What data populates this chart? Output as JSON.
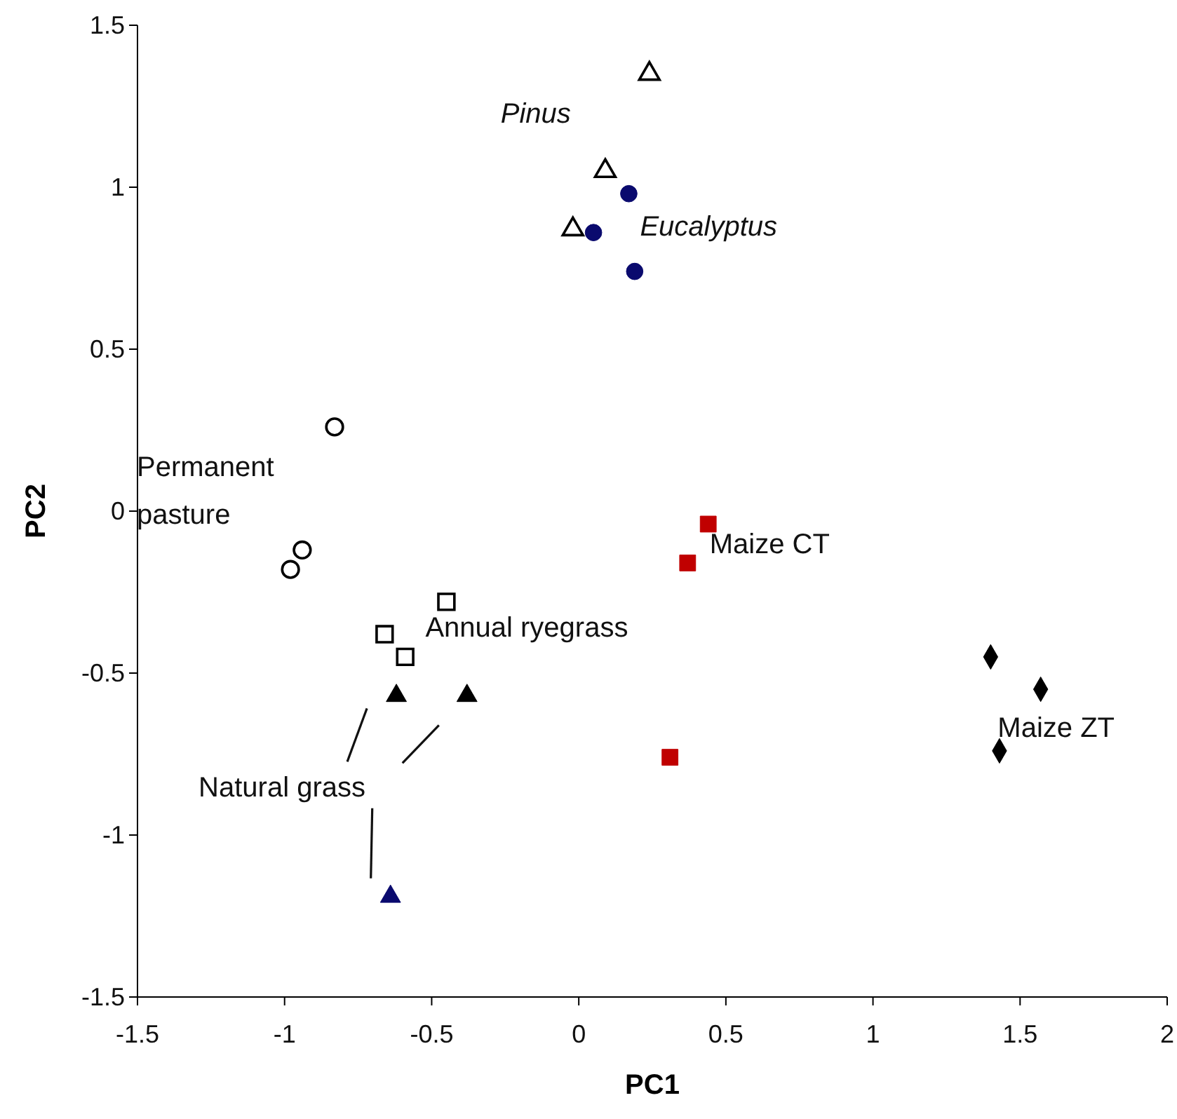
{
  "chart_data": {
    "type": "scatter",
    "xlabel": "PC1",
    "ylabel": "PC2",
    "xlim": [
      -1.5,
      2
    ],
    "ylim": [
      -1.5,
      1.5
    ],
    "xticks": [
      -1.5,
      -1,
      -0.5,
      0,
      0.5,
      1,
      1.5,
      2
    ],
    "yticks": [
      -1.5,
      -1,
      -0.5,
      0,
      0.5,
      1,
      1.5
    ],
    "grid": false,
    "series": [
      {
        "name": "Pinus",
        "color": "#000000",
        "marker": "triangle",
        "x": [
          0.24,
          0.09,
          -0.02
        ],
        "values": [
          1.35,
          1.05,
          0.87
        ]
      },
      {
        "name": "Eucalyptus",
        "color": "#0a0a6e",
        "marker": "circle",
        "x": [
          0.17,
          0.05,
          0.19
        ],
        "values": [
          0.98,
          0.86,
          0.74
        ]
      },
      {
        "name": "Permanent pasture",
        "color": "#000000",
        "marker": "circle",
        "x": [
          -0.83,
          -0.94,
          -0.98
        ],
        "values": [
          0.26,
          -0.12,
          -0.18
        ]
      },
      {
        "name": "Annual ryegrass",
        "color": "#000000",
        "marker": "square",
        "x": [
          -0.45,
          -0.66,
          -0.59
        ],
        "values": [
          -0.28,
          -0.38,
          -0.45
        ]
      },
      {
        "name": "Natural grass",
        "colors": [
          "#000000",
          "#000000",
          "#0a0a6e"
        ],
        "marker": "triangle",
        "x": [
          -0.62,
          -0.38,
          -0.64
        ],
        "values": [
          -0.57,
          -0.57,
          -1.19
        ]
      },
      {
        "name": "Maize CT",
        "color": "#c00000",
        "marker": "square",
        "x": [
          0.44,
          0.37,
          0.31
        ],
        "values": [
          -0.04,
          -0.16,
          -0.76
        ]
      },
      {
        "name": "Maize ZT",
        "color": "#000000",
        "marker": "diamond",
        "x": [
          1.4,
          1.57,
          1.43
        ],
        "values": [
          -0.45,
          -0.55,
          -0.74
        ]
      }
    ]
  }
}
